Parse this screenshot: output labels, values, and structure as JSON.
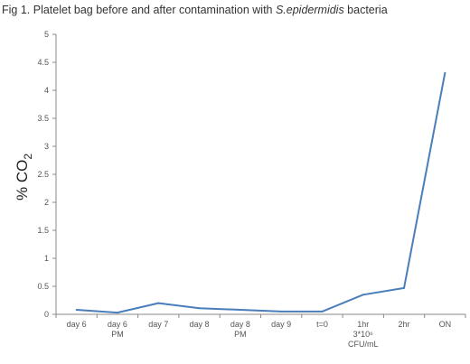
{
  "chart_data": {
    "type": "line",
    "title_prefix": "Fig 1. Platelet bag before and after contamination with ",
    "title_italic": "S.epidermidis",
    "title_suffix": "  bacteria",
    "ylabel_main": "% CO",
    "ylabel_sub": "2",
    "xlabel": "",
    "ylim": [
      0,
      5
    ],
    "yticks": [
      "0",
      "0.5",
      "1",
      "1.5",
      "2",
      "2.5",
      "3",
      "3.5",
      "4",
      "4.5",
      "5"
    ],
    "categories": [
      [
        "day 6"
      ],
      [
        "day 6",
        "PM"
      ],
      [
        "day 7"
      ],
      [
        "day 8"
      ],
      [
        "day 8",
        "PM"
      ],
      [
        "day 9"
      ],
      [
        "t=0"
      ],
      [
        "1hr",
        "3*10⁶",
        "CFU/mL"
      ],
      [
        "2hr"
      ],
      [
        "ON"
      ]
    ],
    "grid": false,
    "legend": "none",
    "color": "#4a7ebb",
    "series": [
      {
        "values": [
          0.08,
          0.03,
          0.2,
          0.11,
          0.08,
          0.05,
          0.05,
          0.35,
          0.47,
          4.31
        ]
      }
    ]
  }
}
